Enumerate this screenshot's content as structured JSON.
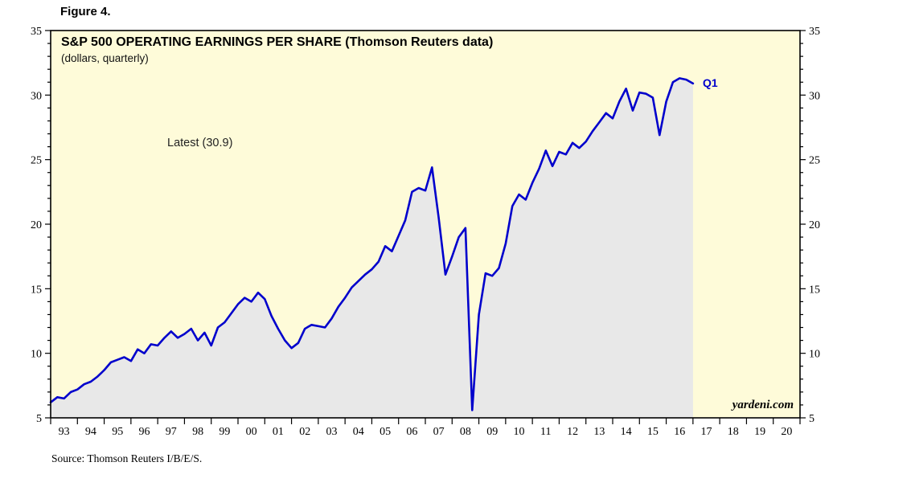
{
  "figure": {
    "label": "Figure 4."
  },
  "source_note": "Source: Thomson Reuters I/B/E/S.",
  "watermark": "yardeni.com",
  "chart_data": {
    "type": "area",
    "title": "S&P 500 OPERATING EARNINGS PER SHARE (Thomson Reuters data)",
    "subtitle": "(dollars, quarterly)",
    "xlabel": "",
    "ylabel": "",
    "ylim": [
      5,
      35
    ],
    "x_start": 1993,
    "x_end": 2021,
    "y_major_ticks": [
      5,
      10,
      15,
      20,
      25,
      30,
      35
    ],
    "y_minor_step": 1,
    "x_year_labels": [
      "93",
      "94",
      "95",
      "96",
      "97",
      "98",
      "99",
      "00",
      "01",
      "02",
      "03",
      "04",
      "05",
      "06",
      "07",
      "08",
      "09",
      "10",
      "11",
      "12",
      "13",
      "14",
      "15",
      "16",
      "17",
      "18",
      "19",
      "20"
    ],
    "grid": false,
    "legend_position": "none",
    "background_color": "#FEFBD9",
    "fill_color": "#E8E8E8",
    "axis_color": "#000000",
    "annotations": [
      {
        "text": "Latest (30.9)",
        "color": "#222222"
      },
      {
        "text": "Q1",
        "color": "#0000CC"
      }
    ],
    "series": [
      {
        "name": "S&P 500 operating earnings per share (dollars)",
        "color": "#0000CC",
        "x_start_year": 1993,
        "points_per_year": 4,
        "values": [
          6.2,
          6.6,
          6.5,
          7.0,
          7.2,
          7.6,
          7.8,
          8.2,
          8.7,
          9.3,
          9.5,
          9.7,
          9.4,
          10.3,
          10.0,
          10.7,
          10.6,
          11.2,
          11.7,
          11.2,
          11.5,
          11.9,
          11.0,
          11.6,
          10.6,
          12.0,
          12.4,
          13.1,
          13.8,
          14.3,
          14.0,
          14.7,
          14.2,
          12.9,
          11.9,
          11.0,
          10.4,
          10.8,
          11.9,
          12.2,
          12.1,
          12.0,
          12.7,
          13.6,
          14.3,
          15.1,
          15.6,
          16.1,
          16.5,
          17.1,
          18.3,
          17.9,
          19.1,
          20.3,
          22.5,
          22.8,
          22.6,
          24.4,
          20.5,
          16.1,
          17.5,
          19.0,
          19.7,
          5.6,
          13.0,
          16.2,
          16.0,
          16.6,
          18.5,
          21.4,
          22.3,
          21.9,
          23.2,
          24.3,
          25.7,
          24.5,
          25.6,
          25.4,
          26.3,
          25.9,
          26.4,
          27.2,
          27.9,
          28.6,
          28.2,
          29.5,
          30.5,
          28.8,
          30.2,
          30.1,
          29.8,
          26.9,
          29.5,
          31.0,
          31.3,
          31.2,
          30.9
        ]
      }
    ]
  }
}
